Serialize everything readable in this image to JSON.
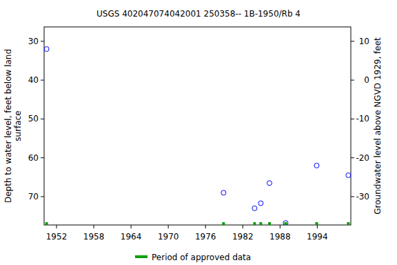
{
  "chart_data": {
    "type": "scatter",
    "title": "USGS 402047074042001 250358-- 1B-1950/Rb 4",
    "ylabel": [
      "Depth to water level, feet below land",
      "surface"
    ],
    "y2label": "Groundwater level above NGVD 1929, feet",
    "x": [
      1950.4,
      1978.9,
      1983.9,
      1984.9,
      1986.3,
      1988.9,
      1993.9,
      1999.0
    ],
    "values": [
      32,
      69,
      73,
      71.7,
      66.5,
      76.8,
      62,
      64.5
    ],
    "color": "#0000ff",
    "marker": "circle",
    "approved": {
      "name": "Period of approved data",
      "color": "#00a000",
      "x": [
        1950.4,
        1978.9,
        1983.9,
        1984.9,
        1986.3,
        1988.9,
        1993.9,
        1999.0
      ]
    },
    "xlim": [
      1950,
      1999.4
    ],
    "xticks": [
      1952,
      1958,
      1964,
      1970,
      1976,
      1982,
      1988,
      1994
    ],
    "ylim": [
      26.3,
      77.3
    ],
    "yticks": [
      30,
      40,
      50,
      60,
      70
    ],
    "y2lim": [
      13.7,
      -37.3
    ],
    "y2ticks": [
      10,
      0,
      -10,
      -20,
      -30
    ],
    "grid": false
  }
}
